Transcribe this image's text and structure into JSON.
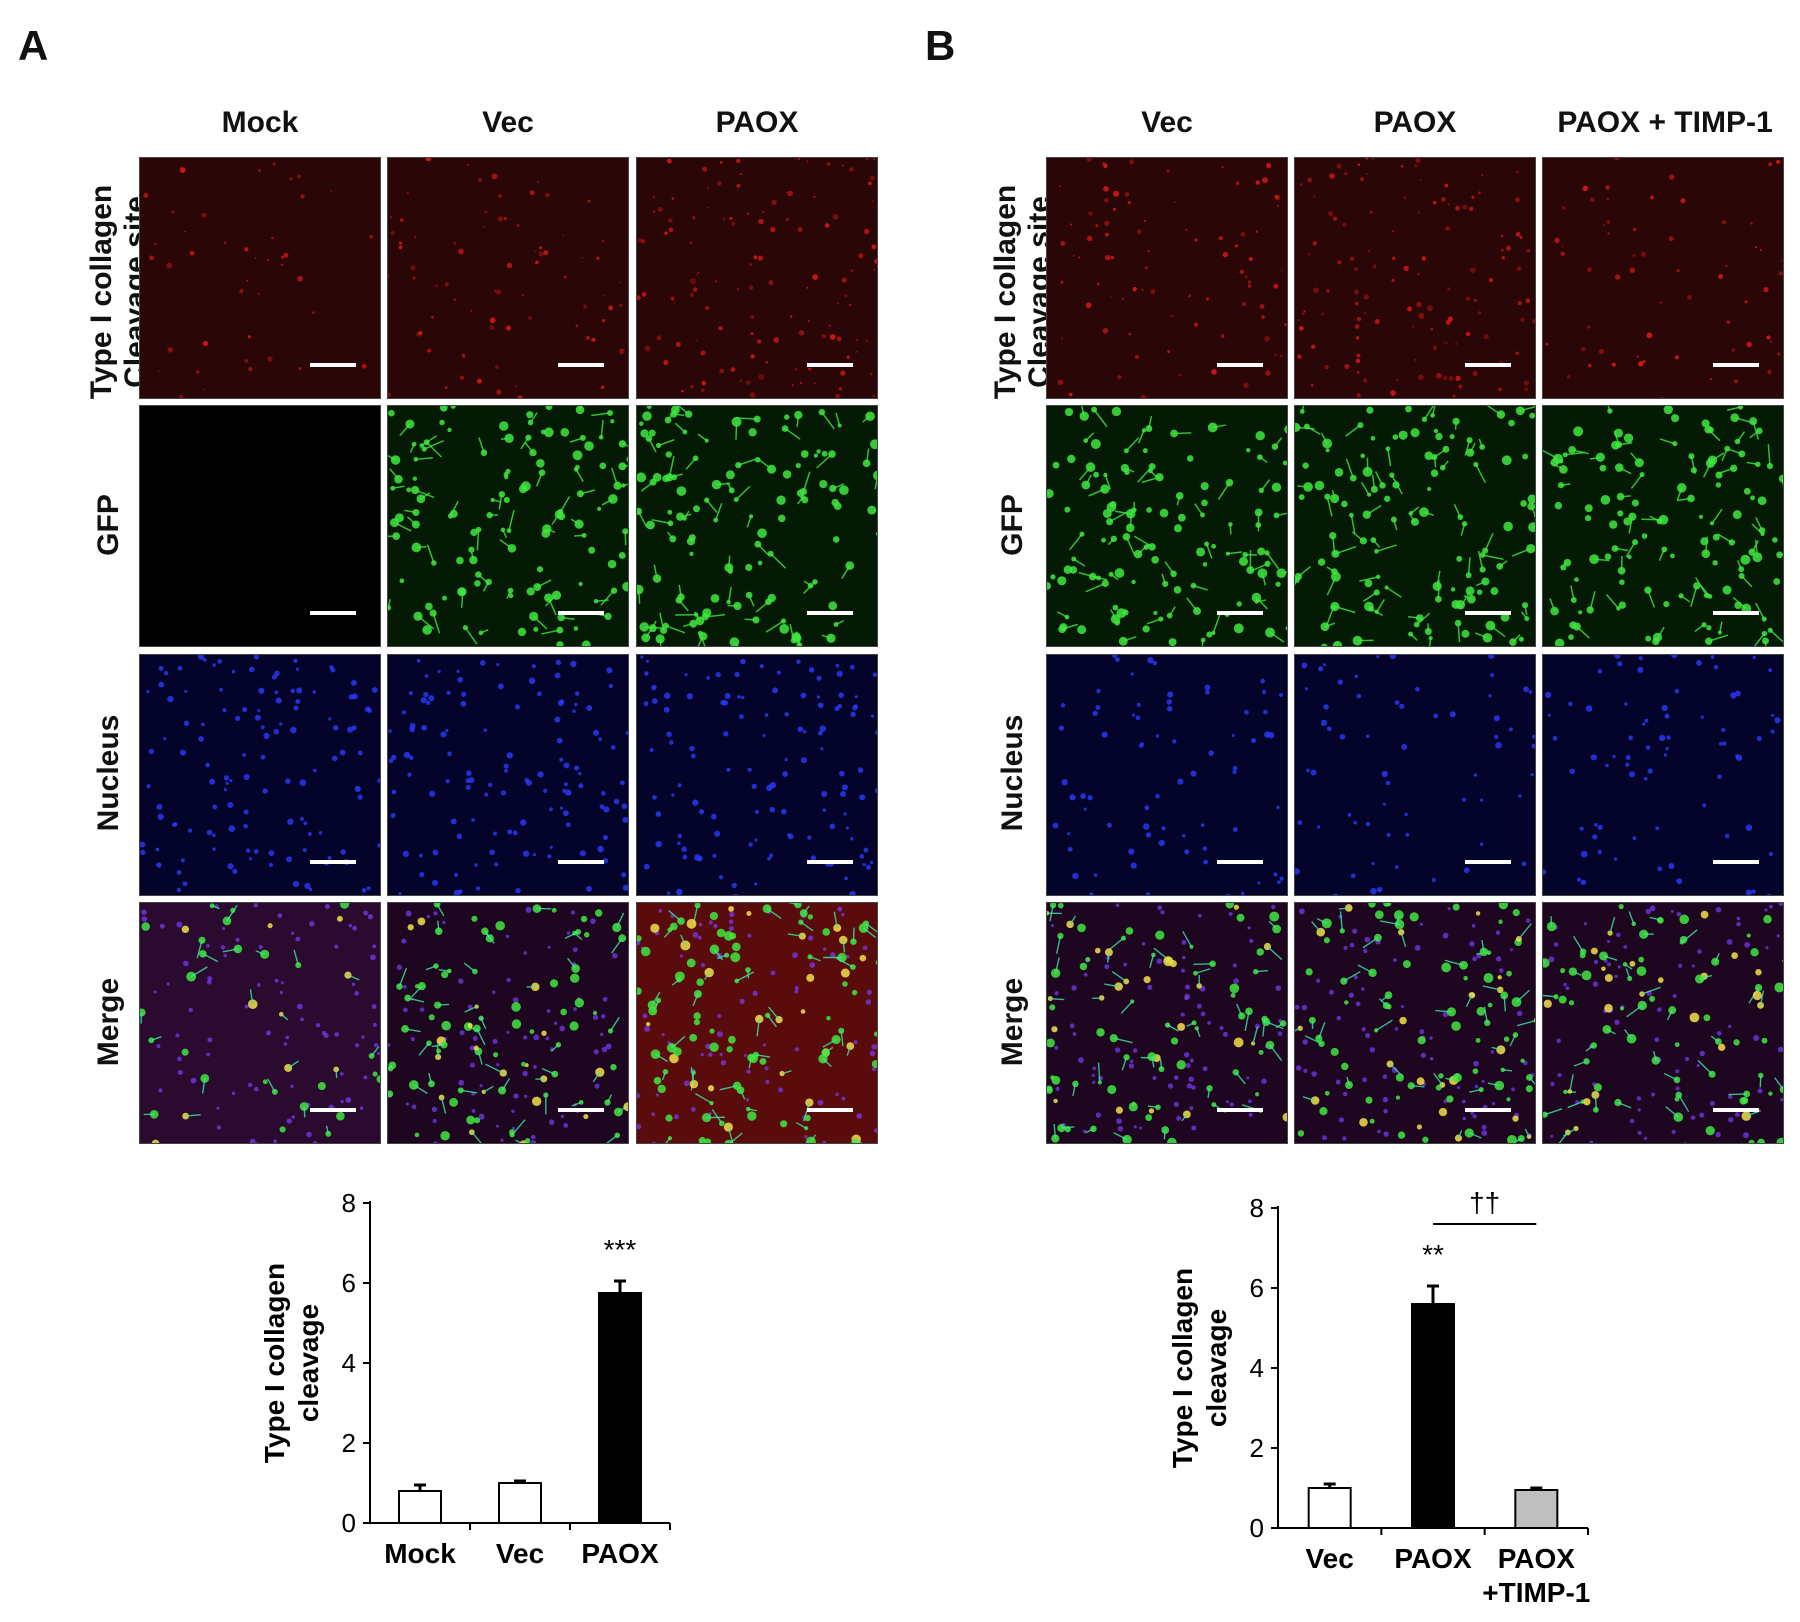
{
  "panels": [
    {
      "letter": "A",
      "columns": [
        "Mock",
        "Vec",
        "PAOX"
      ],
      "rows": [
        {
          "label_lines": [
            "Type I collagen",
            "Cleavage site"
          ],
          "channel": "red"
        },
        {
          "label_lines": [
            "GFP"
          ],
          "channel": "green"
        },
        {
          "label_lines": [
            "Nucleus"
          ],
          "channel": "blue"
        },
        {
          "label_lines": [
            "Merge"
          ],
          "channel": "merge"
        }
      ]
    },
    {
      "letter": "B",
      "columns": [
        "Vec",
        "PAOX",
        "PAOX + TIMP-1"
      ],
      "rows": [
        {
          "label_lines": [
            "Type I collagen",
            "Cleavage site"
          ],
          "channel": "red"
        },
        {
          "label_lines": [
            "GFP"
          ],
          "channel": "green"
        },
        {
          "label_lines": [
            "Nucleus"
          ],
          "channel": "blue"
        },
        {
          "label_lines": [
            "Merge"
          ],
          "channel": "merge"
        }
      ]
    }
  ],
  "chart_data": [
    {
      "type": "bar",
      "ylabel_lines": [
        "Type I collagen",
        "cleavage"
      ],
      "categories": [
        [
          "Mock"
        ],
        [
          "Vec"
        ],
        [
          "PAOX"
        ]
      ],
      "values": [
        0.8,
        1.0,
        5.75
      ],
      "errors": [
        0.15,
        0.05,
        0.3
      ],
      "bar_colors": [
        "#ffffff",
        "#ffffff",
        "#000000"
      ],
      "ylim": [
        0,
        8
      ],
      "yticks": [
        "0",
        "2",
        "4",
        "6",
        "8"
      ],
      "annotations": [
        {
          "text": "***",
          "category_index": 2
        }
      ],
      "bracket": null
    },
    {
      "type": "bar",
      "ylabel_lines": [
        "Type I collagen",
        "cleavage"
      ],
      "categories": [
        [
          "Vec"
        ],
        [
          "PAOX"
        ],
        [
          "PAOX",
          "+TIMP-1"
        ]
      ],
      "values": [
        1.0,
        5.6,
        0.95
      ],
      "errors": [
        0.1,
        0.45,
        0.05
      ],
      "bar_colors": [
        "#ffffff",
        "#000000",
        "#bfbfbf"
      ],
      "ylim": [
        0,
        8
      ],
      "yticks": [
        "0",
        "2",
        "4",
        "6",
        "8"
      ],
      "annotations": [
        {
          "text": "**",
          "category_index": 1
        }
      ],
      "bracket": {
        "text": "††",
        "from": 1,
        "to": 2,
        "y": 7.6
      }
    }
  ]
}
